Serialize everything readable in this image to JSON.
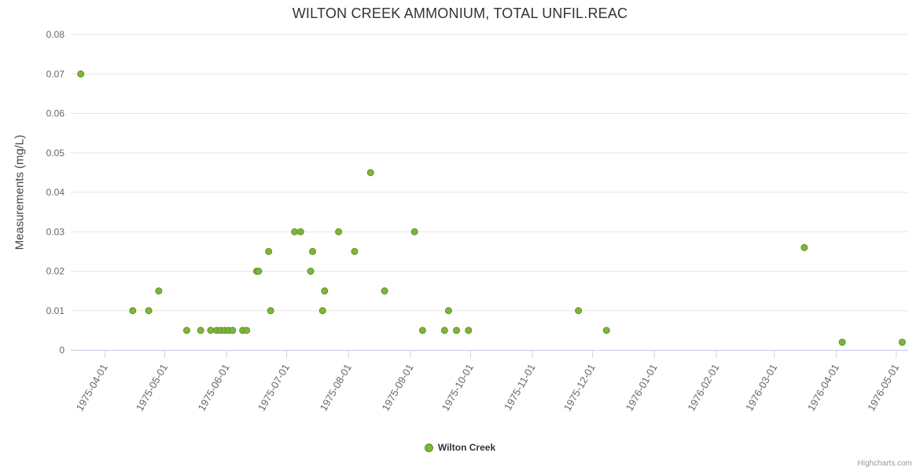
{
  "chart_data": {
    "type": "scatter",
    "title": "WILTON CREEK AMMONIUM, TOTAL UNFIL.REAC",
    "xlabel": "",
    "ylabel": "Measurements (mg/L)",
    "ylim": [
      0,
      0.08
    ],
    "y_tick_step": 0.01,
    "y_tick_labels": [
      "0",
      "0.01",
      "0.02",
      "0.03",
      "0.04",
      "0.05",
      "0.06",
      "0.07",
      "0.08"
    ],
    "x_min": "1975-03-15",
    "x_max": "1976-05-07",
    "x_tick_labels": [
      "1975-04-01",
      "1975-05-01",
      "1975-06-01",
      "1975-07-01",
      "1975-08-01",
      "1975-09-01",
      "1975-10-01",
      "1975-11-01",
      "1975-12-01",
      "1976-01-01",
      "1976-02-01",
      "1976-03-01",
      "1976-04-01",
      "1976-05-01"
    ],
    "grid": "horizontal-only",
    "legend_position": "bottom-center",
    "axis_line_color": "#ccd6eb",
    "grid_color": "#e6e6e6",
    "series": [
      {
        "name": "Wilton Creek",
        "color": "#7db53d",
        "stroke": "#5f8f26",
        "points": [
          [
            "1975-03-20",
            0.07
          ],
          [
            "1975-04-15",
            0.01
          ],
          [
            "1975-04-23",
            0.01
          ],
          [
            "1975-04-28",
            0.015
          ],
          [
            "1975-05-12",
            0.005
          ],
          [
            "1975-05-19",
            0.005
          ],
          [
            "1975-05-24",
            0.005
          ],
          [
            "1975-05-27",
            0.005
          ],
          [
            "1975-05-29",
            0.005
          ],
          [
            "1975-05-31",
            0.005
          ],
          [
            "1975-06-02",
            0.005
          ],
          [
            "1975-06-04",
            0.005
          ],
          [
            "1975-06-09",
            0.005
          ],
          [
            "1975-06-11",
            0.005
          ],
          [
            "1975-06-16",
            0.02
          ],
          [
            "1975-06-17",
            0.02
          ],
          [
            "1975-06-22",
            0.025
          ],
          [
            "1975-06-23",
            0.01
          ],
          [
            "1975-07-05",
            0.03
          ],
          [
            "1975-07-08",
            0.03
          ],
          [
            "1975-07-13",
            0.02
          ],
          [
            "1975-07-14",
            0.025
          ],
          [
            "1975-07-19",
            0.01
          ],
          [
            "1975-07-20",
            0.015
          ],
          [
            "1975-07-27",
            0.03
          ],
          [
            "1975-08-04",
            0.025
          ],
          [
            "1975-08-12",
            0.045
          ],
          [
            "1975-08-19",
            0.015
          ],
          [
            "1975-09-03",
            0.03
          ],
          [
            "1975-09-07",
            0.005
          ],
          [
            "1975-09-18",
            0.005
          ],
          [
            "1975-09-20",
            0.01
          ],
          [
            "1975-09-24",
            0.005
          ],
          [
            "1975-09-30",
            0.005
          ],
          [
            "1975-11-24",
            0.01
          ],
          [
            "1975-12-08",
            0.005
          ],
          [
            "1976-03-16",
            0.026
          ],
          [
            "1976-04-04",
            0.002
          ],
          [
            "1976-05-04",
            0.002
          ]
        ]
      }
    ]
  },
  "credit": "Highcharts.com"
}
